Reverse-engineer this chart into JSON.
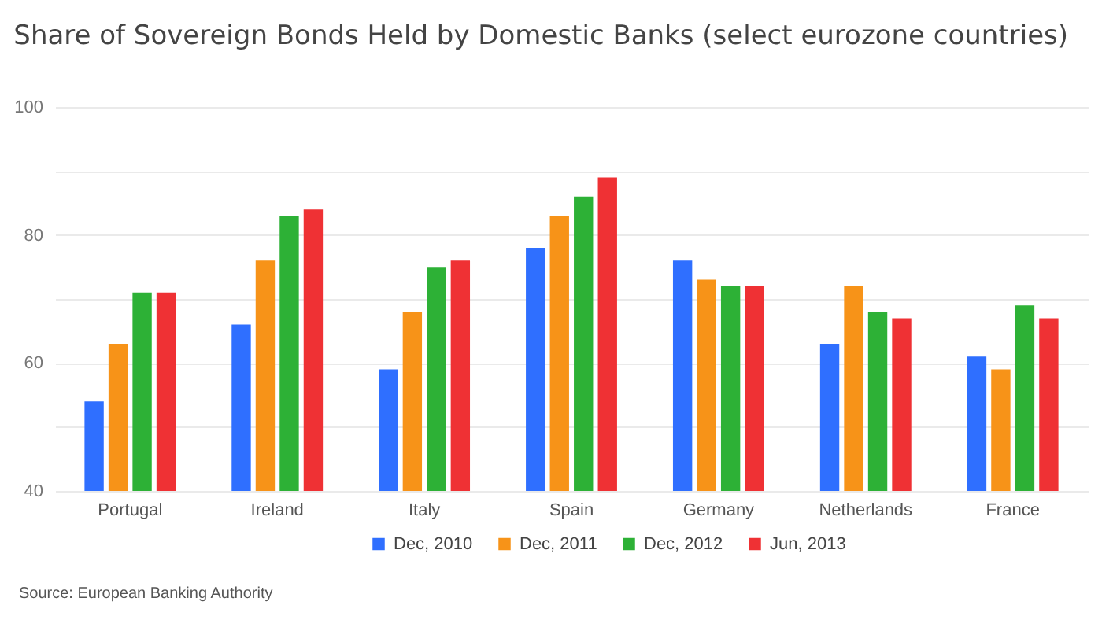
{
  "chart_data": {
    "type": "bar",
    "title": "Share of Sovereign Bonds Held by Domestic Banks (select eurozone countries)",
    "categories": [
      "Portugal",
      "Ireland",
      "Italy",
      "Spain",
      "Germany",
      "Netherlands",
      "France"
    ],
    "series": [
      {
        "name": "Dec, 2010",
        "color": "#2f6fff",
        "values": [
          54,
          66,
          59,
          78,
          76,
          63,
          61
        ]
      },
      {
        "name": "Dec, 2011",
        "color": "#f79318",
        "values": [
          63,
          76,
          68,
          83,
          73,
          72,
          59
        ]
      },
      {
        "name": "Dec, 2012",
        "color": "#2db136",
        "values": [
          71,
          83,
          75,
          86,
          72,
          68,
          69
        ]
      },
      {
        "name": "Jun, 2013",
        "color": "#ef3134",
        "values": [
          71,
          84,
          76,
          89,
          72,
          67,
          67
        ]
      }
    ],
    "ylim": [
      40,
      100
    ],
    "yticks": [
      40,
      {
        "value": 50,
        "label": null
      },
      60,
      {
        "value": 70,
        "label": null
      },
      80,
      {
        "value": 90,
        "label": null
      },
      100
    ],
    "grid": true,
    "legend": "bottom",
    "annotations": [
      "Source: European Banking Authority"
    ]
  }
}
